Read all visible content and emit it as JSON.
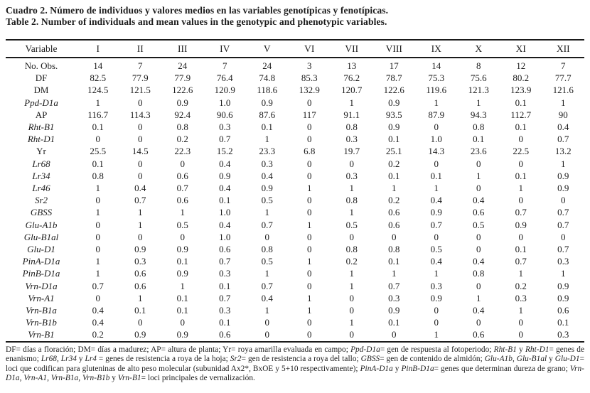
{
  "caption": {
    "line_es": "Cuadro 2. Número de individuos y valores medios en las variables genotípicas y fenotípicas.",
    "line_en": "Table 2. Number of individuals and mean values in the genotypic and phenotypic variables."
  },
  "table": {
    "columns": [
      "Variable",
      "I",
      "II",
      "III",
      "IV",
      "V",
      "VI",
      "VII",
      "VIII",
      "IX",
      "X",
      "XI",
      "XII"
    ],
    "rows": [
      {
        "variable": "No. Obs.",
        "italic": false,
        "values": [
          "14",
          "7",
          "24",
          "7",
          "24",
          "3",
          "13",
          "17",
          "14",
          "8",
          "12",
          "7"
        ]
      },
      {
        "variable": "DF",
        "italic": false,
        "values": [
          "82.5",
          "77.9",
          "77.9",
          "76.4",
          "74.8",
          "85.3",
          "76.2",
          "78.7",
          "75.3",
          "75.6",
          "80.2",
          "77.7"
        ]
      },
      {
        "variable": "DM",
        "italic": false,
        "values": [
          "124.5",
          "121.5",
          "122.6",
          "120.9",
          "118.6",
          "132.9",
          "120.7",
          "122.6",
          "119.6",
          "121.3",
          "123.9",
          "121.6"
        ]
      },
      {
        "variable": "Ppd-D1a",
        "italic": true,
        "values": [
          "1",
          "0",
          "0.9",
          "1.0",
          "0.9",
          "0",
          "1",
          "0.9",
          "1",
          "1",
          "0.1",
          "1"
        ]
      },
      {
        "variable": "AP",
        "italic": false,
        "values": [
          "116.7",
          "114.3",
          "92.4",
          "90.6",
          "87.6",
          "117",
          "91.1",
          "93.5",
          "87.9",
          "94.3",
          "112.7",
          "90"
        ]
      },
      {
        "variable": "Rht-B1",
        "italic": true,
        "values": [
          "0.1",
          "0",
          "0.8",
          "0.3",
          "0.1",
          "0",
          "0.8",
          "0.9",
          "0",
          "0.8",
          "0.1",
          "0.4"
        ]
      },
      {
        "variable": "Rht-D1",
        "italic": true,
        "values": [
          "0",
          "0",
          "0.2",
          "0.7",
          "1",
          "0",
          "0.3",
          "0.1",
          "1.0",
          "0.1",
          "0",
          "0.7"
        ]
      },
      {
        "variable": "Yr",
        "italic": false,
        "values": [
          "25.5",
          "14.5",
          "22.3",
          "15.2",
          "23.3",
          "6.8",
          "19.7",
          "25.1",
          "14.3",
          "23.6",
          "22.5",
          "13.2"
        ]
      },
      {
        "variable": "Lr68",
        "italic": true,
        "values": [
          "0.1",
          "0",
          "0",
          "0.4",
          "0.3",
          "0",
          "0",
          "0.2",
          "0",
          "0",
          "0",
          "1"
        ]
      },
      {
        "variable": "Lr34",
        "italic": true,
        "values": [
          "0.8",
          "0",
          "0.6",
          "0.9",
          "0.4",
          "0",
          "0.3",
          "0.1",
          "0.1",
          "1",
          "0.1",
          "0.9"
        ]
      },
      {
        "variable": "Lr46",
        "italic": true,
        "values": [
          "1",
          "0.4",
          "0.7",
          "0.4",
          "0.9",
          "1",
          "1",
          "1",
          "1",
          "0",
          "1",
          "0.9"
        ]
      },
      {
        "variable": "Sr2",
        "italic": true,
        "values": [
          "0",
          "0.7",
          "0.6",
          "0.1",
          "0.5",
          "0",
          "0.8",
          "0.2",
          "0.4",
          "0.4",
          "0",
          "0"
        ]
      },
      {
        "variable": "GBSS",
        "italic": true,
        "values": [
          "1",
          "1",
          "1",
          "1.0",
          "1",
          "0",
          "1",
          "0.6",
          "0.9",
          "0.6",
          "0.7",
          "0.7"
        ]
      },
      {
        "variable": "Glu-A1b",
        "italic": true,
        "values": [
          "0",
          "1",
          "0.5",
          "0.4",
          "0.7",
          "1",
          "0.5",
          "0.6",
          "0.7",
          "0.5",
          "0.9",
          "0.7"
        ]
      },
      {
        "variable": "Glu-B1al",
        "italic": true,
        "values": [
          "0",
          "0",
          "0",
          "1.0",
          "0",
          "0",
          "0",
          "0",
          "0",
          "0",
          "0",
          "0"
        ]
      },
      {
        "variable": "Glu-D1",
        "italic": true,
        "values": [
          "0",
          "0.9",
          "0.9",
          "0.6",
          "0.8",
          "0",
          "0.8",
          "0.8",
          "0.5",
          "0",
          "0.1",
          "0.7"
        ]
      },
      {
        "variable": "PinA-D1a",
        "italic": true,
        "values": [
          "1",
          "0.3",
          "0.1",
          "0.7",
          "0.5",
          "1",
          "0.2",
          "0.1",
          "0.4",
          "0.4",
          "0.7",
          "0.3"
        ]
      },
      {
        "variable": "PinB-D1a",
        "italic": true,
        "values": [
          "1",
          "0.6",
          "0.9",
          "0.3",
          "1",
          "0",
          "1",
          "1",
          "1",
          "0.8",
          "1",
          "1"
        ]
      },
      {
        "variable": "Vrn-D1a",
        "italic": true,
        "values": [
          "0.7",
          "0.6",
          "1",
          "0.1",
          "0.7",
          "0",
          "1",
          "0.7",
          "0.3",
          "0",
          "0.2",
          "0.9"
        ]
      },
      {
        "variable": "Vrn-A1",
        "italic": true,
        "values": [
          "0",
          "1",
          "0.1",
          "0.7",
          "0.4",
          "1",
          "0",
          "0.3",
          "0.9",
          "1",
          "0.3",
          "0.9"
        ]
      },
      {
        "variable": "Vrn-B1a",
        "italic": true,
        "values": [
          "0.4",
          "0.1",
          "0.1",
          "0.3",
          "1",
          "1",
          "0",
          "0.9",
          "0",
          "0.4",
          "1",
          "0.6"
        ]
      },
      {
        "variable": "Vrn-B1b",
        "italic": true,
        "values": [
          "0.4",
          "0",
          "0",
          "0.1",
          "0",
          "0",
          "1",
          "0.1",
          "0",
          "0",
          "0",
          "0.1"
        ]
      },
      {
        "variable": "Vrn-B1",
        "italic": true,
        "values": [
          "0.2",
          "0.9",
          "0.9",
          "0.6",
          "0",
          "0",
          "0",
          "0",
          "1",
          "0.6",
          "0",
          "0.3"
        ]
      }
    ]
  },
  "footnote": {
    "segments": [
      {
        "text": "DF= días a floración; DM= días a madurez; AP= altura de planta; Yr= roya amarilla evaluada en campo; ",
        "italic": false
      },
      {
        "text": "Ppd-D1a",
        "italic": true
      },
      {
        "text": "= gen de respuesta al fotoperiodo; ",
        "italic": false
      },
      {
        "text": "Rht-B1",
        "italic": true
      },
      {
        "text": " y ",
        "italic": false
      },
      {
        "text": "Rht-D1",
        "italic": true
      },
      {
        "text": "= genes de enanismo; ",
        "italic": false
      },
      {
        "text": "Lr68",
        "italic": true
      },
      {
        "text": ", ",
        "italic": false
      },
      {
        "text": "Lr34",
        "italic": true
      },
      {
        "text": " y ",
        "italic": false
      },
      {
        "text": "Lr4",
        "italic": true
      },
      {
        "text": " = genes de resistencia a roya de la hoja; ",
        "italic": false
      },
      {
        "text": "Sr2",
        "italic": true
      },
      {
        "text": "= gen de resistencia a roya del tallo; ",
        "italic": false
      },
      {
        "text": "GBSS",
        "italic": true
      },
      {
        "text": "= gen de contenido de almidón; ",
        "italic": false
      },
      {
        "text": "Glu-A1b",
        "italic": true
      },
      {
        "text": ", ",
        "italic": false
      },
      {
        "text": "Glu-B1al",
        "italic": true
      },
      {
        "text": " y ",
        "italic": false
      },
      {
        "text": "Glu-D1",
        "italic": true
      },
      {
        "text": "= loci que codifican para gluteninas de alto peso molecular (subunidad Ax2*, BxOE y 5+10 respectivamente); ",
        "italic": false
      },
      {
        "text": "PinA-D1a",
        "italic": true
      },
      {
        "text": " y ",
        "italic": false
      },
      {
        "text": "PinB-D1a",
        "italic": true
      },
      {
        "text": "= genes que determinan dureza de grano; ",
        "italic": false
      },
      {
        "text": "Vrn-D1a",
        "italic": true
      },
      {
        "text": ", ",
        "italic": false
      },
      {
        "text": "Vrn-A1",
        "italic": true
      },
      {
        "text": ", ",
        "italic": false
      },
      {
        "text": "Vrn-B1a",
        "italic": true
      },
      {
        "text": ", ",
        "italic": false
      },
      {
        "text": "Vrn-B1b",
        "italic": true
      },
      {
        "text": " y ",
        "italic": false
      },
      {
        "text": "Vrn-B1",
        "italic": true
      },
      {
        "text": "= loci principales de vernalización.",
        "italic": false
      }
    ]
  }
}
